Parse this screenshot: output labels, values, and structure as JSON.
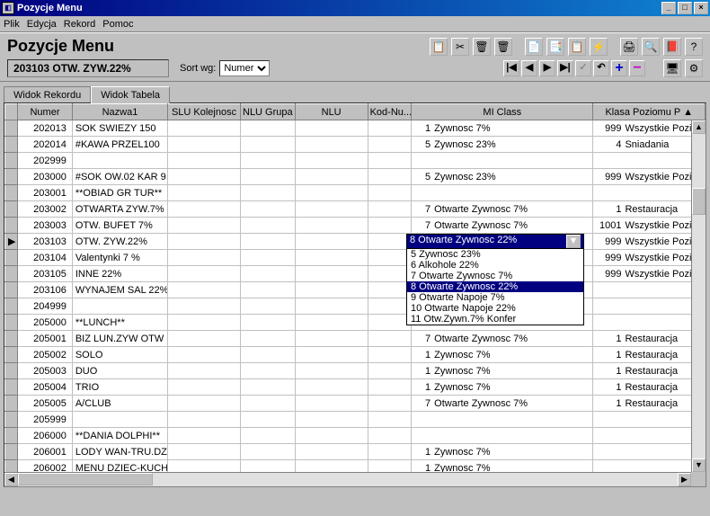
{
  "window": {
    "title": "Pozycje Menu"
  },
  "menubar": [
    "Plik",
    "Edycja",
    "Rekord",
    "Pomoc"
  ],
  "header": {
    "title": "Pozycje Menu",
    "status": "203103  OTW. ZYW.22%",
    "sort_label": "Sort wg:",
    "sort_value": "Numer"
  },
  "tabs": {
    "record": "Widok Rekordu",
    "table": "Widok Tabela"
  },
  "columns": {
    "numer": "Numer",
    "nazwa1": "Nazwa1",
    "slu": "SLU Kolejnosc",
    "nlu_g": "NLU Grupa",
    "nlu": "NLU",
    "kod": "Kod-Nu...",
    "mi": "MI Class",
    "klasa": "Klasa Poziomu P"
  },
  "rows": [
    {
      "numer": "202013",
      "nazwa": "SOK SWIEZY 150",
      "mi_n": "1",
      "mi_t": "Zywnosc 7%",
      "kp_n": "999",
      "kp_t": "Wszystkie Poziomy"
    },
    {
      "numer": "202014",
      "nazwa": "#KAWA PRZEL100",
      "mi_n": "5",
      "mi_t": "Zywnosc 23%",
      "kp_n": "4",
      "kp_t": "Sniadania"
    },
    {
      "numer": "202999",
      "nazwa": "",
      "mi_n": "",
      "mi_t": "",
      "kp_n": "",
      "kp_t": ""
    },
    {
      "numer": "203000",
      "nazwa": "#SOK OW.02 KAR 9",
      "mi_n": "5",
      "mi_t": "Zywnosc 23%",
      "kp_n": "999",
      "kp_t": "Wszystkie Poziomy"
    },
    {
      "numer": "203001",
      "nazwa": "**OBIAD GR TUR**",
      "mi_n": "",
      "mi_t": "",
      "kp_n": "",
      "kp_t": ""
    },
    {
      "numer": "203002",
      "nazwa": "OTWARTA ZYW.7%",
      "mi_n": "7",
      "mi_t": "Otwarte Zywnosc 7%",
      "kp_n": "1",
      "kp_t": "Restauracja"
    },
    {
      "numer": "203003",
      "nazwa": "OTW. BUFET 7%",
      "mi_n": "7",
      "mi_t": "Otwarte Zywnosc 7%",
      "kp_n": "1001",
      "kp_t": "Wszystkie Poziom"
    },
    {
      "numer": "203103",
      "nazwa": "OTW. ZYW.22%",
      "mi_n": "8",
      "mi_t": "Otwarte Zywnosc 22%",
      "kp_n": "999",
      "kp_t": "Wszystkie Poziomy",
      "active": true,
      "dropdown": true
    },
    {
      "numer": "203104",
      "nazwa": "Valentynki  7 %",
      "mi_n": "",
      "mi_t": "",
      "kp_n": "999",
      "kp_t": "Wszystkie Poziomy"
    },
    {
      "numer": "203105",
      "nazwa": "INNE 22%",
      "mi_n": "",
      "mi_t": "",
      "kp_n": "999",
      "kp_t": "Wszystkie Poziomy"
    },
    {
      "numer": "203106",
      "nazwa": "WYNAJEM SAL 22%",
      "mi_n": "",
      "mi_t": "",
      "kp_n": "",
      "kp_t": ""
    },
    {
      "numer": "204999",
      "nazwa": "",
      "mi_n": "",
      "mi_t": "",
      "kp_n": "",
      "kp_t": ""
    },
    {
      "numer": "205000",
      "nazwa": "**LUNCH**",
      "mi_n": "",
      "mi_t": "",
      "kp_n": "",
      "kp_t": ""
    },
    {
      "numer": "205001",
      "nazwa": "BIZ LUN.ZYW OTW",
      "mi_n": "7",
      "mi_t": "Otwarte Zywnosc 7%",
      "kp_n": "1",
      "kp_t": "Restauracja"
    },
    {
      "numer": "205002",
      "nazwa": "SOLO",
      "mi_n": "1",
      "mi_t": "Zywnosc 7%",
      "kp_n": "1",
      "kp_t": "Restauracja"
    },
    {
      "numer": "205003",
      "nazwa": "DUO",
      "mi_n": "1",
      "mi_t": "Zywnosc 7%",
      "kp_n": "1",
      "kp_t": "Restauracja"
    },
    {
      "numer": "205004",
      "nazwa": "TRIO",
      "mi_n": "1",
      "mi_t": "Zywnosc 7%",
      "kp_n": "1",
      "kp_t": "Restauracja"
    },
    {
      "numer": "205005",
      "nazwa": "A/CLUB",
      "mi_n": "7",
      "mi_t": "Otwarte Zywnosc 7%",
      "kp_n": "1",
      "kp_t": "Restauracja"
    },
    {
      "numer": "205999",
      "nazwa": "",
      "mi_n": "",
      "mi_t": "",
      "kp_n": "",
      "kp_t": ""
    },
    {
      "numer": "206000",
      "nazwa": "**DANIA DOLPHI**",
      "mi_n": "",
      "mi_t": "",
      "kp_n": "",
      "kp_t": ""
    },
    {
      "numer": "206001",
      "nazwa": "LODY WAN-TRU.DZ",
      "mi_n": "1",
      "mi_t": "Zywnosc 7%",
      "kp_n": "",
      "kp_t": ""
    },
    {
      "numer": "206002",
      "nazwa": "MENU DZIEC-KUCH",
      "mi_n": "1",
      "mi_t": "Zywnosc 7%",
      "kp_n": "",
      "kp_t": ""
    }
  ],
  "dropdown": {
    "selected": "8  Otwarte Zywnosc 22%",
    "items": [
      {
        "t": "5  Zywnosc 23%"
      },
      {
        "t": "6  Alkohole 22%"
      },
      {
        "t": "7  Otwarte Zywnosc 7%"
      },
      {
        "t": "8  Otwarte Zywnosc 22%",
        "hl": true
      },
      {
        "t": "9  Otwarte Napoje 7%"
      },
      {
        "t": "10  Otwarte Napoje 22%"
      },
      {
        "t": "11  Otw.Zywn.7% Konfer"
      }
    ]
  },
  "col_widths": {
    "rowhdr": 14,
    "numer": 60,
    "nazwa": 105,
    "slu": 80,
    "nlug": 60,
    "nlu": 80,
    "kod": 50,
    "mi": 200,
    "klasa": 125
  }
}
